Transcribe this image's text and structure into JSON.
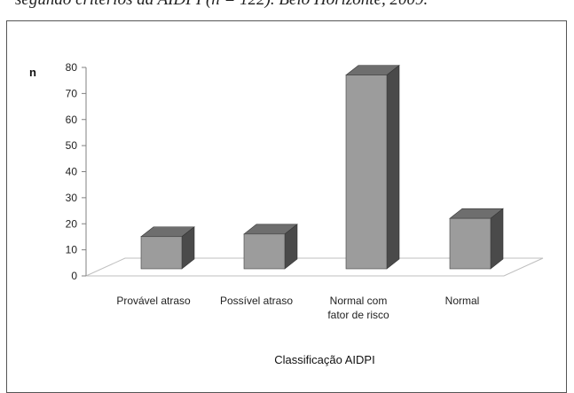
{
  "caption": "segundo critérios da AIDPI (n = 122). Belo Horizonte, 2009.",
  "chart_data": {
    "type": "bar",
    "title": "",
    "xlabel": "Classificação AIDPI",
    "ylabel": "n",
    "ylim": [
      0,
      80
    ],
    "yticks": [
      0,
      10,
      20,
      30,
      40,
      50,
      60,
      70,
      80
    ],
    "categories": [
      [
        "Provável atraso"
      ],
      [
        "Possível atraso"
      ],
      [
        "Normal com",
        "fator de risco"
      ],
      [
        "Normal"
      ]
    ],
    "values": [
      12,
      13,
      74,
      19
    ],
    "grid": false,
    "legend": "none",
    "colors": {
      "bar_front": "#9c9c9c",
      "bar_side": "#4a4a4a",
      "bar_top": "#6e6e6e",
      "floor": "#bfbfbf",
      "axis": "#808080"
    }
  }
}
